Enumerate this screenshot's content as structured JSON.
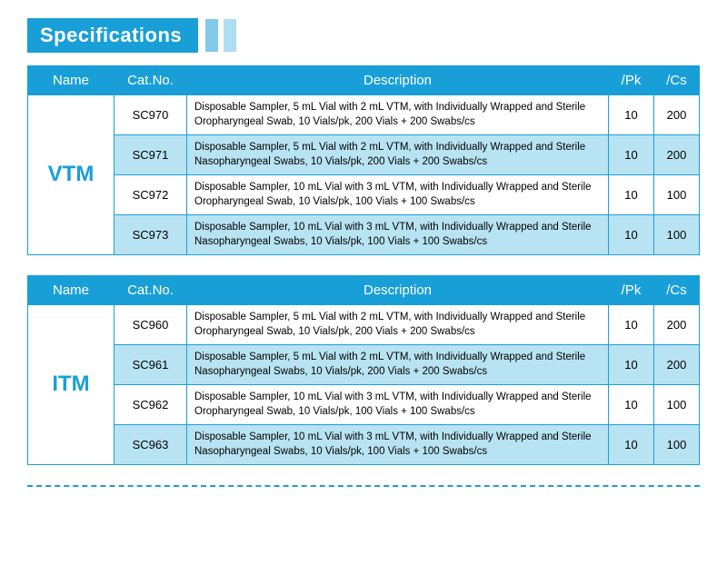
{
  "header": {
    "title": "Specifications"
  },
  "colors": {
    "primary": "#199fd8",
    "altRow": "#b8e3f2",
    "background": "#ffffff"
  },
  "columns": {
    "name": "Name",
    "cat": "Cat.No.",
    "desc": "Description",
    "pk": "/Pk",
    "cs": "/Cs"
  },
  "tables": [
    {
      "name": "VTM",
      "rows": [
        {
          "cat": "SC970",
          "desc": "Disposable Sampler, 5 mL Vial with 2 mL VTM, with Individually Wrapped and Sterile Oropharyngeal Swab, 10 Vials/pk, 200 Vials + 200 Swabs/cs",
          "pk": "10",
          "cs": "200"
        },
        {
          "cat": "SC971",
          "desc": "Disposable Sampler, 5 mL Vial with 2 mL VTM, with Individually Wrapped and Sterile Nasopharyngeal Swabs, 10 Vials/pk, 200 Vials + 200 Swabs/cs",
          "pk": "10",
          "cs": "200"
        },
        {
          "cat": "SC972",
          "desc": "Disposable Sampler, 10 mL Vial with 3 mL VTM, with Individually Wrapped and Sterile Oropharyngeal Swab, 10 Vials/pk, 100 Vials + 100 Swabs/cs",
          "pk": "10",
          "cs": "100"
        },
        {
          "cat": "SC973",
          "desc": "Disposable Sampler, 10 mL Vial with 3 mL VTM, with Individually Wrapped and Sterile Nasopharyngeal Swabs, 10 Vials/pk, 100 Vials + 100 Swabs/cs",
          "pk": "10",
          "cs": "100"
        }
      ]
    },
    {
      "name": "ITM",
      "rows": [
        {
          "cat": "SC960",
          "desc": "Disposable Sampler, 5 mL Vial with 2 mL VTM, with Individually Wrapped and Sterile Oropharyngeal Swab, 10 Vials/pk, 200 Vials + 200 Swabs/cs",
          "pk": "10",
          "cs": "200"
        },
        {
          "cat": "SC961",
          "desc": "Disposable Sampler, 5 mL Vial with 2 mL VTM, with Individually Wrapped and Sterile Nasopharyngeal Swabs, 10 Vials/pk, 200 Vials + 200 Swabs/cs",
          "pk": "10",
          "cs": "200"
        },
        {
          "cat": "SC962",
          "desc": "Disposable Sampler, 10 mL Vial with 3 mL VTM, with Individually Wrapped and Sterile Oropharyngeal Swab, 10 Vials/pk, 100 Vials + 100 Swabs/cs",
          "pk": "10",
          "cs": "100"
        },
        {
          "cat": "SC963",
          "desc": "Disposable Sampler, 10 mL Vial with 3 mL VTM, with Individually Wrapped and Sterile Nasopharyngeal Swabs, 10 Vials/pk, 100 Vials + 100 Swabs/cs",
          "pk": "10",
          "cs": "100"
        }
      ]
    }
  ]
}
